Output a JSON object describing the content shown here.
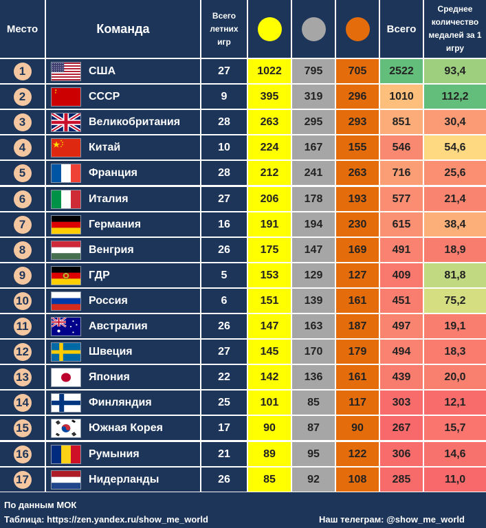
{
  "colors": {
    "navy": "#1c3559",
    "gold_fill": "#ffff00",
    "silver_fill": "#a6a6a6",
    "bronze_fill": "#e46c0a",
    "rank_badge": "#f5c7a0",
    "scale_red": "#f8696b",
    "scale_yellow": "#ffeb84",
    "scale_green": "#63be7b"
  },
  "header": {
    "rank": "Место",
    "team": "Команда",
    "games": "Всего летних игр",
    "gold_icon": "gold-medal-icon",
    "silver_icon": "silver-medal-icon",
    "bronze_icon": "bronze-medal-icon",
    "total": "Всего",
    "average": "Среднее количество медалей за 1 игру"
  },
  "chart_data": {
    "type": "table",
    "columns": [
      "Место",
      "Команда",
      "Всего летних игр",
      "gold",
      "silver",
      "bronze",
      "Всего",
      "Среднее количество медалей за 1 игру"
    ],
    "rows": [
      {
        "rank": "1",
        "flag": "usa",
        "team": "США",
        "games": "27",
        "gold": "1022",
        "silver": "795",
        "bronze": "705",
        "total": "2522",
        "avg": "93,4"
      },
      {
        "rank": "2",
        "flag": "ussr",
        "team": "СССР",
        "games": "9",
        "gold": "395",
        "silver": "319",
        "bronze": "296",
        "total": "1010",
        "avg": "112,2"
      },
      {
        "rank": "3",
        "flag": "uk",
        "team": "Великобритания",
        "games": "28",
        "gold": "263",
        "silver": "295",
        "bronze": "293",
        "total": "851",
        "avg": "30,4"
      },
      {
        "rank": "4",
        "flag": "china",
        "team": "Китай",
        "games": "10",
        "gold": "224",
        "silver": "167",
        "bronze": "155",
        "total": "546",
        "avg": "54,6"
      },
      {
        "rank": "5",
        "flag": "france",
        "team": "Франция",
        "games": "28",
        "gold": "212",
        "silver": "241",
        "bronze": "263",
        "total": "716",
        "avg": "25,6"
      },
      {
        "rank": "6",
        "flag": "italy",
        "team": "Италия",
        "games": "27",
        "gold": "206",
        "silver": "178",
        "bronze": "193",
        "total": "577",
        "avg": "21,4"
      },
      {
        "rank": "7",
        "flag": "germany",
        "team": "Германия",
        "games": "16",
        "gold": "191",
        "silver": "194",
        "bronze": "230",
        "total": "615",
        "avg": "38,4"
      },
      {
        "rank": "8",
        "flag": "hungary",
        "team": "Венгрия",
        "games": "26",
        "gold": "175",
        "silver": "147",
        "bronze": "169",
        "total": "491",
        "avg": "18,9"
      },
      {
        "rank": "9",
        "flag": "gdr",
        "team": "ГДР",
        "games": "5",
        "gold": "153",
        "silver": "129",
        "bronze": "127",
        "total": "409",
        "avg": "81,8"
      },
      {
        "rank": "10",
        "flag": "russia",
        "team": "Россия",
        "games": "6",
        "gold": "151",
        "silver": "139",
        "bronze": "161",
        "total": "451",
        "avg": "75,2"
      },
      {
        "rank": "11",
        "flag": "australia",
        "team": "Австралия",
        "games": "26",
        "gold": "147",
        "silver": "163",
        "bronze": "187",
        "total": "497",
        "avg": "19,1"
      },
      {
        "rank": "12",
        "flag": "sweden",
        "team": "Швеция",
        "games": "27",
        "gold": "145",
        "silver": "170",
        "bronze": "179",
        "total": "494",
        "avg": "18,3"
      },
      {
        "rank": "13",
        "flag": "japan",
        "team": "Япония",
        "games": "22",
        "gold": "142",
        "silver": "136",
        "bronze": "161",
        "total": "439",
        "avg": "20,0"
      },
      {
        "rank": "14",
        "flag": "finland",
        "team": "Финляндия",
        "games": "25",
        "gold": "101",
        "silver": "85",
        "bronze": "117",
        "total": "303",
        "avg": "12,1"
      },
      {
        "rank": "15",
        "flag": "south-korea",
        "team": "Южная Корея",
        "games": "17",
        "gold": "90",
        "silver": "87",
        "bronze": "90",
        "total": "267",
        "avg": "15,7"
      },
      {
        "rank": "16",
        "flag": "romania",
        "team": "Румыния",
        "games": "21",
        "gold": "89",
        "silver": "95",
        "bronze": "122",
        "total": "306",
        "avg": "14,6"
      },
      {
        "rank": "17",
        "flag": "netherlands",
        "team": "Нидерланды",
        "games": "26",
        "gold": "85",
        "silver": "92",
        "bronze": "108",
        "total": "285",
        "avg": "11,0"
      }
    ]
  },
  "footer": {
    "source": "По данным МОК",
    "table_link": "Таблица: https://zen.yandex.ru/show_me_world",
    "telegram": "Наш телеграм: @show_me_world"
  }
}
